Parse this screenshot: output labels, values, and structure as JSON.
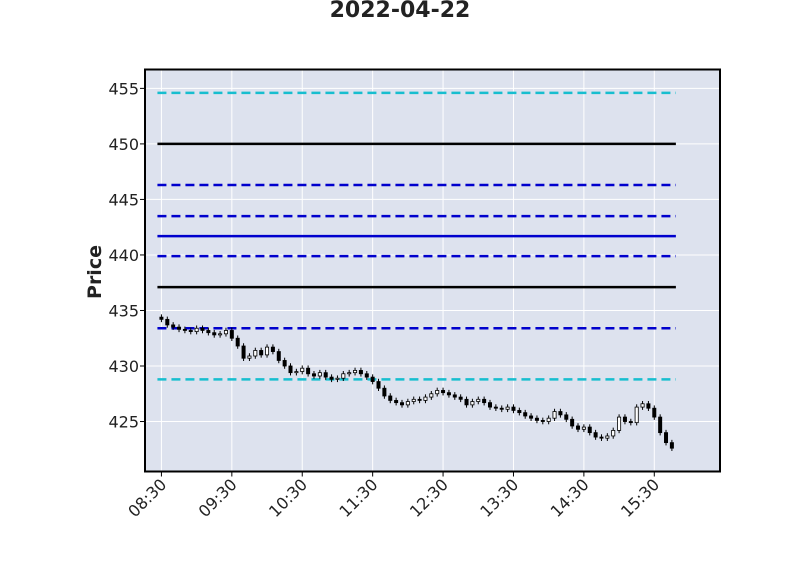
{
  "chart_data": {
    "type": "candlestick",
    "title": "2022-04-22",
    "xlabel": "",
    "ylabel": "Price",
    "x_tick_labels": [
      "08:30",
      "09:30",
      "10:30",
      "11:30",
      "12:30",
      "13:30",
      "14:30",
      "15:30"
    ],
    "y_ticks": [
      425,
      430,
      435,
      440,
      445,
      450,
      455
    ],
    "ylim": [
      420.5,
      456.7
    ],
    "xlim": [
      "08:16",
      "16:26"
    ],
    "grid": true,
    "background_color": "#dde2ee",
    "candle_interval_minutes": 5,
    "candle_color": "#000000",
    "levels": [
      {
        "value": 454.6,
        "style": "dashed",
        "color": "#17becf"
      },
      {
        "value": 450.0,
        "style": "solid",
        "color": "#000000"
      },
      {
        "value": 446.3,
        "style": "dashed",
        "color": "#0000cd"
      },
      {
        "value": 443.5,
        "style": "dashed",
        "color": "#0000cd"
      },
      {
        "value": 441.7,
        "style": "solid",
        "color": "#0000cd"
      },
      {
        "value": 439.9,
        "style": "dashed",
        "color": "#0000cd"
      },
      {
        "value": 437.1,
        "style": "solid",
        "color": "#000000"
      },
      {
        "value": 433.4,
        "style": "dashed",
        "color": "#0000cd"
      },
      {
        "value": 428.8,
        "style": "dashed",
        "color": "#17becf"
      }
    ],
    "close_path": [
      434.2,
      433.7,
      433.5,
      433.3,
      433.2,
      433.1,
      433.4,
      433.2,
      433.0,
      432.8,
      432.9,
      433.2,
      432.5,
      431.8,
      430.7,
      430.9,
      431.4,
      431.0,
      431.7,
      431.3,
      430.5,
      430.0,
      429.4,
      429.5,
      429.8,
      429.3,
      429.1,
      429.4,
      429.0,
      428.8,
      428.9,
      429.3,
      429.4,
      429.6,
      429.3,
      429.0,
      428.6,
      428.0,
      427.3,
      426.9,
      426.7,
      426.5,
      426.8,
      427.0,
      426.9,
      427.2,
      427.5,
      427.8,
      427.6,
      427.4,
      427.2,
      427.0,
      426.5,
      426.8,
      427.0,
      426.7,
      426.3,
      426.2,
      426.1,
      426.3,
      426.0,
      425.8,
      425.5,
      425.3,
      425.1,
      425.0,
      425.3,
      425.9,
      425.6,
      425.2,
      424.6,
      424.3,
      424.5,
      424.0,
      423.6,
      423.5,
      423.7,
      424.2,
      425.4,
      425.0,
      424.9,
      426.3,
      426.6,
      426.2,
      425.4,
      424.0,
      423.1,
      422.6
    ]
  }
}
